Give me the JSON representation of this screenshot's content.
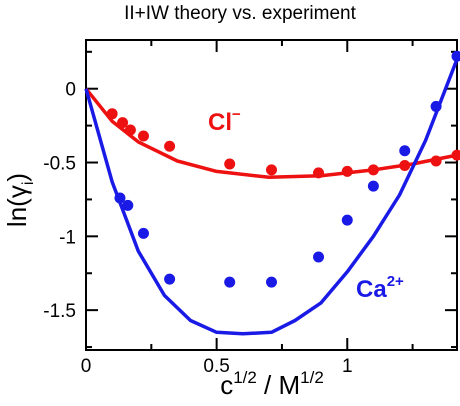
{
  "chart_data": {
    "type": "line",
    "title": "II+IW theory vs. experiment",
    "xlabel": {
      "base": "c",
      "sup1": "1/2",
      "sep": " / M",
      "sup2": "1/2"
    },
    "ylabel": {
      "prefix": "ln(",
      "symbol": "γ",
      "sub": "i",
      "suffix": ")"
    },
    "xlim": [
      0,
      1.42
    ],
    "ylim": [
      -1.77,
      0.33
    ],
    "x_ticks": [
      {
        "value": 0,
        "label": "0"
      },
      {
        "value": 0.5,
        "label": "0.5"
      },
      {
        "value": 1,
        "label": "1"
      }
    ],
    "y_ticks": [
      {
        "value": 0,
        "label": "0"
      },
      {
        "value": -0.5,
        "label": "-0.5"
      },
      {
        "value": -1,
        "label": "-1"
      },
      {
        "value": -1.5,
        "label": "-1.5"
      }
    ],
    "grid": false,
    "series": [
      {
        "name": "Cl⁻",
        "label_base": "Cl",
        "label_sup": "−",
        "color": "#ee1111",
        "theory": {
          "x": [
            0,
            0.1,
            0.2,
            0.35,
            0.5,
            0.7,
            0.9,
            1.1,
            1.25,
            1.42
          ],
          "y": [
            0,
            -0.22,
            -0.36,
            -0.49,
            -0.56,
            -0.6,
            -0.59,
            -0.55,
            -0.51,
            -0.45
          ]
        },
        "experiment": {
          "x": [
            0.1,
            0.14,
            0.17,
            0.22,
            0.32,
            0.55,
            0.71,
            0.89,
            1.0,
            1.1,
            1.22,
            1.34,
            1.42
          ],
          "y": [
            -0.17,
            -0.23,
            -0.28,
            -0.32,
            -0.39,
            -0.51,
            -0.55,
            -0.57,
            -0.56,
            -0.55,
            -0.52,
            -0.49,
            -0.45
          ]
        }
      },
      {
        "name": "Ca²⁺",
        "label_base": "Ca",
        "label_sup": "2+",
        "color": "#1a1ae6",
        "theory": {
          "x": [
            0,
            0.1,
            0.2,
            0.3,
            0.4,
            0.5,
            0.6,
            0.71,
            0.8,
            0.9,
            1.0,
            1.1,
            1.2,
            1.3,
            1.42
          ],
          "y": [
            0,
            -0.63,
            -1.1,
            -1.4,
            -1.57,
            -1.65,
            -1.66,
            -1.65,
            -1.57,
            -1.45,
            -1.24,
            -1.0,
            -0.72,
            -0.35,
            0.2
          ]
        },
        "experiment": {
          "x": [
            0.13,
            0.16,
            0.22,
            0.32,
            0.55,
            0.71,
            0.89,
            1.0,
            1.1,
            1.22,
            1.34,
            1.42
          ],
          "y": [
            -0.74,
            -0.79,
            -0.98,
            -1.29,
            -1.31,
            -1.31,
            -1.14,
            -0.89,
            -0.66,
            -0.42,
            -0.12,
            0.22
          ]
        }
      }
    ]
  }
}
